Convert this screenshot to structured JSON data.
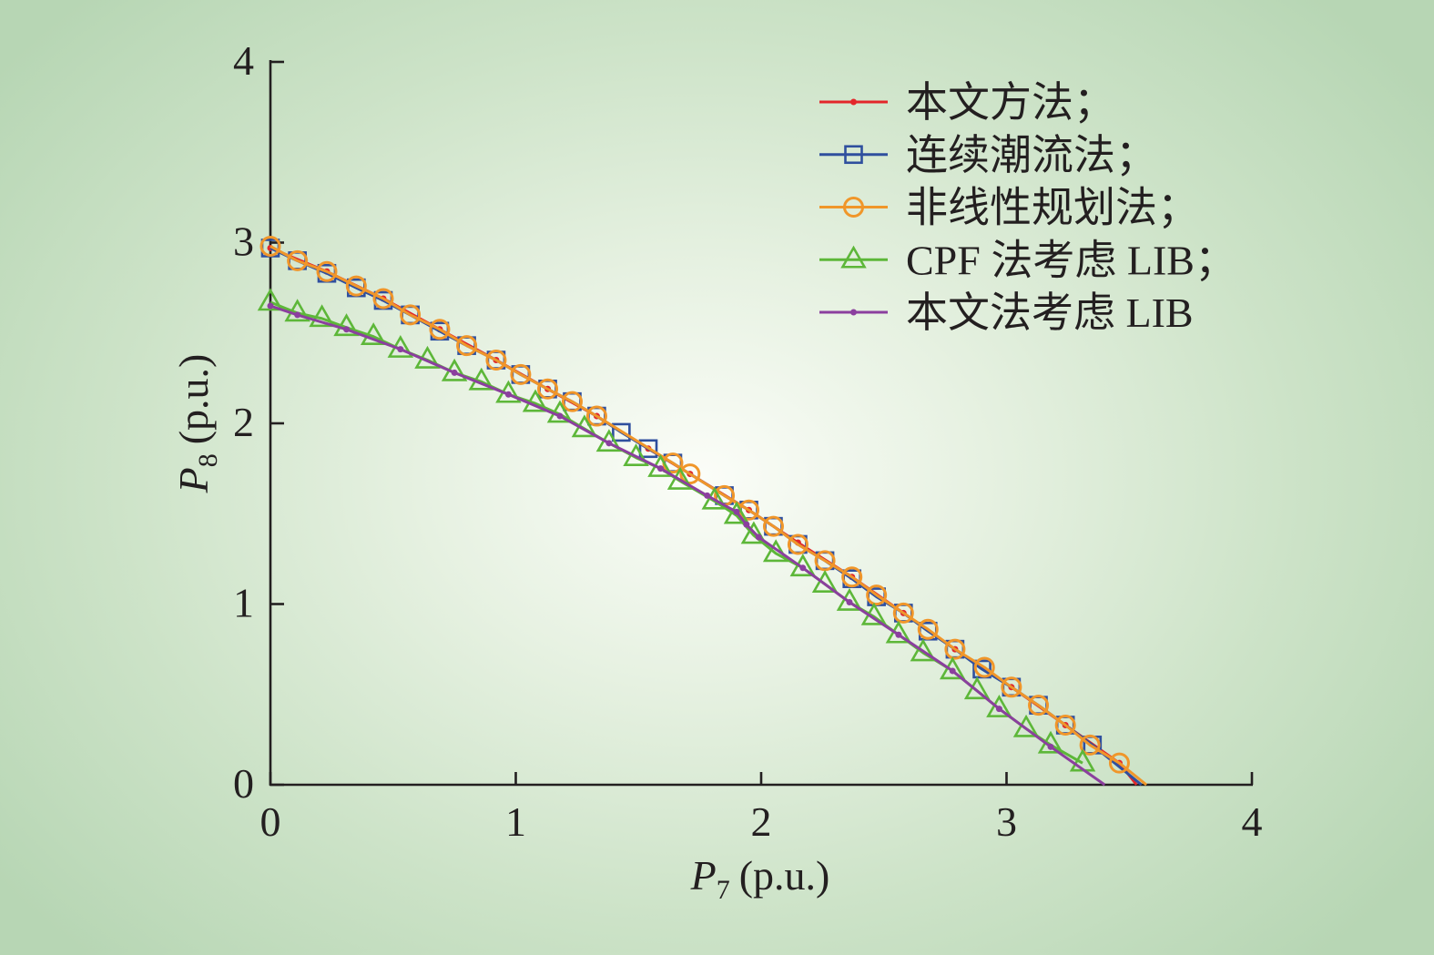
{
  "chart_data": {
    "type": "line",
    "xlabel": {
      "var": "P",
      "sub": "7",
      "unit": "(p.u.)"
    },
    "ylabel": {
      "var": "P",
      "sub": "8",
      "unit": "(p.u.)"
    },
    "xlim": [
      0,
      4
    ],
    "ylim": [
      0,
      4
    ],
    "xticks": [
      "0",
      "1",
      "2",
      "3",
      "4"
    ],
    "yticks": [
      "0",
      "1",
      "2",
      "3",
      "4"
    ],
    "grid": false,
    "legend_position": "top-right",
    "series": [
      {
        "name": "本文方法；",
        "color": "#e3262a",
        "marker": "dot",
        "points": [
          [
            0,
            2.97
          ],
          [
            0.23,
            2.84
          ],
          [
            0.46,
            2.69
          ],
          [
            0.69,
            2.52
          ],
          [
            0.92,
            2.35
          ],
          [
            1.13,
            2.19
          ],
          [
            1.33,
            2.04
          ],
          [
            1.54,
            1.86
          ],
          [
            1.71,
            1.72
          ],
          [
            1.95,
            1.52
          ],
          [
            2.15,
            1.34
          ],
          [
            2.37,
            1.15
          ],
          [
            2.58,
            0.95
          ],
          [
            2.79,
            0.75
          ],
          [
            3.02,
            0.54
          ],
          [
            3.24,
            0.33
          ],
          [
            3.46,
            0.12
          ],
          [
            3.53,
            0
          ]
        ]
      },
      {
        "name": "连续潮流法；",
        "color": "#2f4f9e",
        "marker": "square",
        "points": [
          [
            0,
            2.97
          ],
          [
            0.11,
            2.9
          ],
          [
            0.23,
            2.83
          ],
          [
            0.35,
            2.75
          ],
          [
            0.46,
            2.68
          ],
          [
            0.57,
            2.6
          ],
          [
            0.69,
            2.51
          ],
          [
            0.8,
            2.43
          ],
          [
            0.92,
            2.35
          ],
          [
            1.02,
            2.27
          ],
          [
            1.13,
            2.19
          ],
          [
            1.23,
            2.12
          ],
          [
            1.33,
            2.04
          ],
          [
            1.43,
            1.95
          ],
          [
            1.54,
            1.86
          ],
          [
            1.64,
            1.78
          ],
          [
            1.85,
            1.6
          ],
          [
            1.95,
            1.52
          ],
          [
            2.05,
            1.43
          ],
          [
            2.15,
            1.33
          ],
          [
            2.26,
            1.24
          ],
          [
            2.37,
            1.14
          ],
          [
            2.47,
            1.04
          ],
          [
            2.58,
            0.95
          ],
          [
            2.68,
            0.85
          ],
          [
            2.79,
            0.75
          ],
          [
            2.9,
            0.64
          ],
          [
            3.02,
            0.54
          ],
          [
            3.13,
            0.44
          ],
          [
            3.24,
            0.33
          ],
          [
            3.35,
            0.22
          ],
          [
            3.55,
            0
          ]
        ]
      },
      {
        "name": "非线性规划法；",
        "color": "#f0962a",
        "marker": "circle",
        "points": [
          [
            0,
            2.98
          ],
          [
            0.11,
            2.9
          ],
          [
            0.23,
            2.84
          ],
          [
            0.35,
            2.76
          ],
          [
            0.46,
            2.69
          ],
          [
            0.57,
            2.6
          ],
          [
            0.69,
            2.52
          ],
          [
            0.8,
            2.43
          ],
          [
            0.92,
            2.35
          ],
          [
            1.02,
            2.27
          ],
          [
            1.13,
            2.19
          ],
          [
            1.23,
            2.12
          ],
          [
            1.33,
            2.04
          ],
          [
            1.64,
            1.78
          ],
          [
            1.71,
            1.72
          ],
          [
            1.85,
            1.6
          ],
          [
            1.95,
            1.52
          ],
          [
            2.05,
            1.43
          ],
          [
            2.15,
            1.33
          ],
          [
            2.26,
            1.24
          ],
          [
            2.37,
            1.15
          ],
          [
            2.47,
            1.05
          ],
          [
            2.58,
            0.95
          ],
          [
            2.68,
            0.86
          ],
          [
            2.79,
            0.75
          ],
          [
            2.91,
            0.65
          ],
          [
            3.02,
            0.54
          ],
          [
            3.13,
            0.44
          ],
          [
            3.24,
            0.33
          ],
          [
            3.34,
            0.22
          ],
          [
            3.46,
            0.12
          ],
          [
            3.57,
            0
          ]
        ]
      },
      {
        "name": "CPF 法考虑 LIB；",
        "color": "#5db739",
        "marker": "triangle",
        "points": [
          [
            0,
            2.67
          ],
          [
            0.11,
            2.61
          ],
          [
            0.21,
            2.58
          ],
          [
            0.31,
            2.53
          ],
          [
            0.42,
            2.48
          ],
          [
            0.53,
            2.41
          ],
          [
            0.64,
            2.35
          ],
          [
            0.75,
            2.28
          ],
          [
            0.86,
            2.23
          ],
          [
            0.97,
            2.16
          ],
          [
            1.08,
            2.11
          ],
          [
            1.18,
            2.05
          ],
          [
            1.28,
            1.97
          ],
          [
            1.38,
            1.89
          ],
          [
            1.49,
            1.81
          ],
          [
            1.59,
            1.75
          ],
          [
            1.67,
            1.68
          ],
          [
            1.81,
            1.57
          ],
          [
            1.9,
            1.49
          ],
          [
            1.97,
            1.38
          ],
          [
            2.06,
            1.28
          ],
          [
            2.17,
            1.2
          ],
          [
            2.26,
            1.11
          ],
          [
            2.36,
            1.01
          ],
          [
            2.46,
            0.93
          ],
          [
            2.56,
            0.83
          ],
          [
            2.66,
            0.73
          ],
          [
            2.78,
            0.63
          ],
          [
            2.88,
            0.52
          ],
          [
            2.97,
            0.42
          ],
          [
            3.08,
            0.31
          ],
          [
            3.18,
            0.22
          ],
          [
            3.31,
            0.12
          ]
        ]
      },
      {
        "name": "本文法考虑 LIB",
        "color": "#8b3f9e",
        "marker": "dot",
        "points": [
          [
            0,
            2.65
          ],
          [
            0.11,
            2.6
          ],
          [
            0.31,
            2.52
          ],
          [
            0.53,
            2.41
          ],
          [
            0.75,
            2.28
          ],
          [
            0.97,
            2.16
          ],
          [
            1.18,
            2.04
          ],
          [
            1.38,
            1.89
          ],
          [
            1.59,
            1.75
          ],
          [
            1.78,
            1.6
          ],
          [
            1.9,
            1.51
          ],
          [
            1.94,
            1.44
          ],
          [
            1.99,
            1.37
          ],
          [
            2.17,
            1.2
          ],
          [
            2.36,
            1.01
          ],
          [
            2.56,
            0.83
          ],
          [
            2.78,
            0.63
          ],
          [
            2.97,
            0.42
          ],
          [
            3.18,
            0.21
          ],
          [
            3.4,
            0
          ]
        ]
      }
    ]
  }
}
